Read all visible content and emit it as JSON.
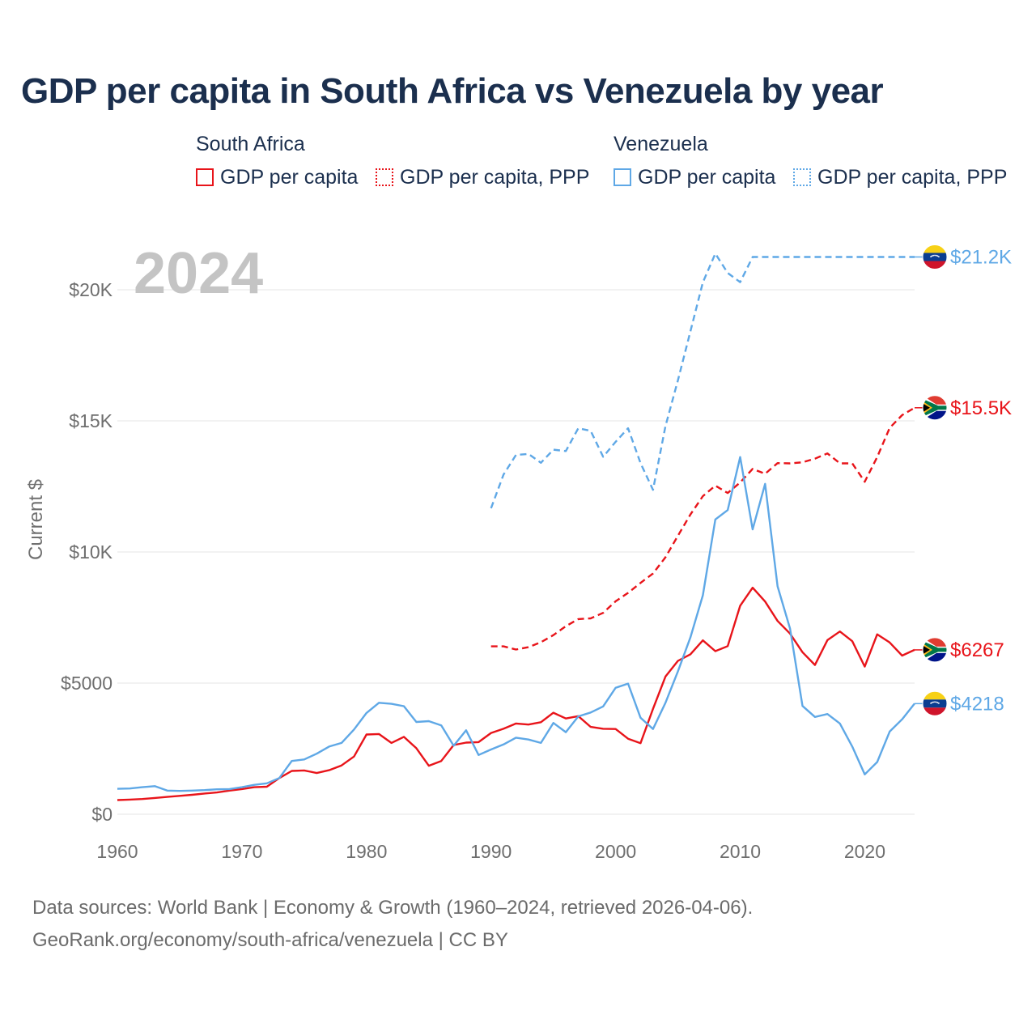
{
  "title": "GDP per capita in South Africa vs Venezuela by year",
  "legend": {
    "groups": [
      {
        "name": "South Africa",
        "items": [
          {
            "label": "GDP per capita",
            "color": "#e8141a",
            "style": "solid"
          },
          {
            "label": "GDP per capita, PPP",
            "color": "#e8141a",
            "style": "dotted"
          }
        ]
      },
      {
        "name": "Venezuela",
        "items": [
          {
            "label": "GDP per capita",
            "color": "#5fa8e6",
            "style": "solid"
          },
          {
            "label": "GDP per capita, PPP",
            "color": "#5fa8e6",
            "style": "dotted"
          }
        ]
      }
    ]
  },
  "footer": {
    "line1": "Data sources: World Bank | Economy & Growth (1960–2024, retrieved 2026-04-06).",
    "line2": "GeoRank.org/economy/south-africa/venezuela | CC BY"
  },
  "chart_data": {
    "type": "line",
    "year_watermark": "2024",
    "ylabel": "Current $",
    "xlabel": "",
    "xlim": [
      1960,
      2024
    ],
    "ylim": [
      0,
      20000
    ],
    "x_ticks": [
      1960,
      1970,
      1980,
      1990,
      2000,
      2010,
      2020
    ],
    "x_tick_labels": [
      "1960",
      "1970",
      "1980",
      "1990",
      "2000",
      "2010",
      "2020"
    ],
    "y_ticks": [
      0,
      5000,
      10000,
      15000,
      20000
    ],
    "y_tick_labels": [
      "$0",
      "$5000",
      "$10K",
      "$15K",
      "$20K"
    ],
    "grid": true,
    "series": [
      {
        "name": "South Africa GDP per capita",
        "country": "South Africa",
        "color": "#e8141a",
        "dash": "solid",
        "end_label": "$6267",
        "points": [
          [
            1960,
            540
          ],
          [
            1961,
            560
          ],
          [
            1962,
            580
          ],
          [
            1963,
            620
          ],
          [
            1964,
            660
          ],
          [
            1965,
            700
          ],
          [
            1966,
            740
          ],
          [
            1967,
            790
          ],
          [
            1968,
            830
          ],
          [
            1969,
            900
          ],
          [
            1970,
            960
          ],
          [
            1971,
            1030
          ],
          [
            1972,
            1050
          ],
          [
            1973,
            1380
          ],
          [
            1974,
            1650
          ],
          [
            1975,
            1670
          ],
          [
            1976,
            1570
          ],
          [
            1977,
            1680
          ],
          [
            1978,
            1860
          ],
          [
            1979,
            2200
          ],
          [
            1980,
            3040
          ],
          [
            1981,
            3060
          ],
          [
            1982,
            2720
          ],
          [
            1983,
            2950
          ],
          [
            1984,
            2520
          ],
          [
            1985,
            1850
          ],
          [
            1986,
            2030
          ],
          [
            1987,
            2640
          ],
          [
            1988,
            2730
          ],
          [
            1989,
            2750
          ],
          [
            1990,
            3100
          ],
          [
            1991,
            3260
          ],
          [
            1992,
            3460
          ],
          [
            1993,
            3420
          ],
          [
            1994,
            3510
          ],
          [
            1995,
            3870
          ],
          [
            1996,
            3650
          ],
          [
            1997,
            3740
          ],
          [
            1998,
            3330
          ],
          [
            1999,
            3260
          ],
          [
            2000,
            3250
          ],
          [
            2001,
            2880
          ],
          [
            2002,
            2710
          ],
          [
            2003,
            4020
          ],
          [
            2004,
            5250
          ],
          [
            2005,
            5850
          ],
          [
            2006,
            6100
          ],
          [
            2007,
            6630
          ],
          [
            2008,
            6220
          ],
          [
            2009,
            6410
          ],
          [
            2010,
            7950
          ],
          [
            2011,
            8640
          ],
          [
            2012,
            8110
          ],
          [
            2013,
            7370
          ],
          [
            2014,
            6890
          ],
          [
            2015,
            6180
          ],
          [
            2016,
            5690
          ],
          [
            2017,
            6640
          ],
          [
            2018,
            6970
          ],
          [
            2019,
            6600
          ],
          [
            2020,
            5630
          ],
          [
            2021,
            6860
          ],
          [
            2022,
            6550
          ],
          [
            2023,
            6050
          ],
          [
            2024,
            6267
          ]
        ]
      },
      {
        "name": "South Africa GDP per capita, PPP",
        "country": "South Africa",
        "color": "#e8141a",
        "dash": "dashed",
        "end_label": "$15.5K",
        "points": [
          [
            1990,
            6400
          ],
          [
            1991,
            6400
          ],
          [
            1992,
            6280
          ],
          [
            1993,
            6370
          ],
          [
            1994,
            6560
          ],
          [
            1995,
            6830
          ],
          [
            1996,
            7170
          ],
          [
            1997,
            7440
          ],
          [
            1998,
            7470
          ],
          [
            1999,
            7680
          ],
          [
            2000,
            8120
          ],
          [
            2001,
            8440
          ],
          [
            2002,
            8820
          ],
          [
            2003,
            9180
          ],
          [
            2004,
            9800
          ],
          [
            2005,
            10620
          ],
          [
            2006,
            11430
          ],
          [
            2007,
            12130
          ],
          [
            2008,
            12530
          ],
          [
            2009,
            12250
          ],
          [
            2010,
            12650
          ],
          [
            2011,
            13170
          ],
          [
            2012,
            12980
          ],
          [
            2013,
            13390
          ],
          [
            2014,
            13380
          ],
          [
            2015,
            13420
          ],
          [
            2016,
            13560
          ],
          [
            2017,
            13760
          ],
          [
            2018,
            13380
          ],
          [
            2019,
            13380
          ],
          [
            2020,
            12680
          ],
          [
            2021,
            13620
          ],
          [
            2022,
            14730
          ],
          [
            2023,
            15220
          ],
          [
            2024,
            15500
          ]
        ]
      },
      {
        "name": "Venezuela GDP per capita",
        "country": "Venezuela",
        "color": "#5fa8e6",
        "dash": "solid",
        "end_label": "$4218",
        "points": [
          [
            1960,
            970
          ],
          [
            1961,
            980
          ],
          [
            1962,
            1030
          ],
          [
            1963,
            1070
          ],
          [
            1964,
            900
          ],
          [
            1965,
            890
          ],
          [
            1966,
            900
          ],
          [
            1967,
            920
          ],
          [
            1968,
            950
          ],
          [
            1969,
            960
          ],
          [
            1970,
            1030
          ],
          [
            1971,
            1120
          ],
          [
            1972,
            1180
          ],
          [
            1973,
            1380
          ],
          [
            1974,
            2030
          ],
          [
            1975,
            2090
          ],
          [
            1976,
            2310
          ],
          [
            1977,
            2580
          ],
          [
            1978,
            2720
          ],
          [
            1979,
            3230
          ],
          [
            1980,
            3860
          ],
          [
            1981,
            4250
          ],
          [
            1982,
            4210
          ],
          [
            1983,
            4120
          ],
          [
            1984,
            3520
          ],
          [
            1985,
            3550
          ],
          [
            1986,
            3390
          ],
          [
            1987,
            2610
          ],
          [
            1988,
            3200
          ],
          [
            1989,
            2260
          ],
          [
            1990,
            2470
          ],
          [
            1991,
            2660
          ],
          [
            1992,
            2920
          ],
          [
            1993,
            2850
          ],
          [
            1994,
            2720
          ],
          [
            1995,
            3480
          ],
          [
            1996,
            3130
          ],
          [
            1997,
            3730
          ],
          [
            1998,
            3880
          ],
          [
            1999,
            4110
          ],
          [
            2000,
            4820
          ],
          [
            2001,
            4980
          ],
          [
            2002,
            3680
          ],
          [
            2003,
            3250
          ],
          [
            2004,
            4250
          ],
          [
            2005,
            5450
          ],
          [
            2006,
            6740
          ],
          [
            2007,
            8350
          ],
          [
            2008,
            11240
          ],
          [
            2009,
            11600
          ],
          [
            2010,
            13620
          ],
          [
            2011,
            10860
          ],
          [
            2012,
            12600
          ],
          [
            2013,
            8690
          ],
          [
            2014,
            7080
          ],
          [
            2015,
            4130
          ],
          [
            2016,
            3710
          ],
          [
            2017,
            3820
          ],
          [
            2018,
            3460
          ],
          [
            2019,
            2580
          ],
          [
            2020,
            1520
          ],
          [
            2021,
            1990
          ],
          [
            2022,
            3150
          ],
          [
            2023,
            3620
          ],
          [
            2024,
            4218
          ]
        ]
      },
      {
        "name": "Venezuela GDP per capita, PPP",
        "country": "Venezuela",
        "color": "#5fa8e6",
        "dash": "dashed",
        "end_label": "$21.2K",
        "points": [
          [
            1990,
            11670
          ],
          [
            1991,
            12950
          ],
          [
            1992,
            13700
          ],
          [
            1993,
            13740
          ],
          [
            1994,
            13400
          ],
          [
            1995,
            13900
          ],
          [
            1996,
            13850
          ],
          [
            1997,
            14720
          ],
          [
            1998,
            14620
          ],
          [
            1999,
            13630
          ],
          [
            2000,
            14200
          ],
          [
            2001,
            14720
          ],
          [
            2002,
            13390
          ],
          [
            2003,
            12370
          ],
          [
            2004,
            14800
          ],
          [
            2005,
            16550
          ],
          [
            2006,
            18410
          ],
          [
            2007,
            20280
          ],
          [
            2008,
            21380
          ],
          [
            2009,
            20640
          ],
          [
            2010,
            20290
          ],
          [
            2011,
            21250
          ],
          [
            2012,
            21250
          ],
          [
            2013,
            21250
          ],
          [
            2014,
            21250
          ],
          [
            2015,
            21250
          ],
          [
            2016,
            21250
          ],
          [
            2017,
            21250
          ],
          [
            2018,
            21250
          ],
          [
            2019,
            21250
          ],
          [
            2020,
            21250
          ],
          [
            2021,
            21250
          ],
          [
            2022,
            21250
          ],
          [
            2023,
            21250
          ],
          [
            2024,
            21250
          ]
        ]
      }
    ]
  }
}
